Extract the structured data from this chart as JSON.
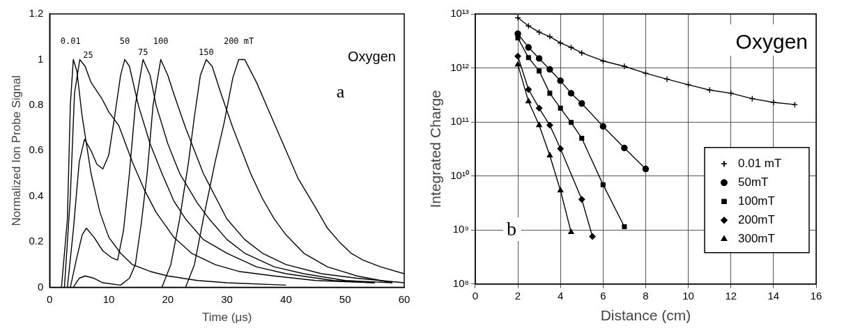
{
  "chart_data": [
    {
      "type": "line",
      "xlabel": "Time (μs)",
      "ylabel": "Normalized Ion Probe Signal",
      "annotations": [
        "Oxygen",
        "a"
      ],
      "xlim": [
        0,
        60
      ],
      "ylim": [
        0,
        1.2
      ],
      "xticks": [
        0,
        10,
        20,
        30,
        40,
        50,
        60
      ],
      "yticks": [
        0,
        0.2,
        0.4,
        0.6,
        0.8,
        1,
        1.2
      ],
      "grid": false,
      "legend": false,
      "marker": "none",
      "line_style": "solid",
      "series": [
        {
          "name": "0.01",
          "color": "#000000",
          "x": [
            2,
            3,
            3.5,
            4,
            4.6,
            5.5,
            7,
            8.5,
            10,
            12,
            14,
            17,
            20,
            25,
            30,
            40
          ],
          "values": [
            0,
            0.3,
            0.8,
            1,
            0.95,
            0.75,
            0.5,
            0.33,
            0.22,
            0.15,
            0.1,
            0.07,
            0.05,
            0.03,
            0.02,
            0.01
          ]
        },
        {
          "name": "25",
          "color": "#000000",
          "x": [
            2.5,
            3.5,
            4.2,
            5.1,
            6,
            7,
            8.8,
            10,
            11.7,
            14,
            16,
            18,
            21,
            24,
            28,
            32,
            38,
            45,
            55
          ],
          "values": [
            0,
            0.4,
            0.85,
            1,
            0.97,
            0.9,
            0.83,
            0.77,
            0.71,
            0.55,
            0.43,
            0.33,
            0.22,
            0.15,
            0.1,
            0.07,
            0.05,
            0.03,
            0.02
          ]
        },
        {
          "name": "50",
          "color": "#000000",
          "x": [
            3,
            4,
            5,
            5.9,
            7,
            8,
            9,
            10,
            11,
            12,
            12.7,
            13.5,
            15,
            17,
            19,
            21,
            23,
            26,
            30,
            35,
            40,
            48,
            55
          ],
          "values": [
            0,
            0.25,
            0.55,
            0.65,
            0.6,
            0.54,
            0.52,
            0.58,
            0.75,
            0.93,
            1,
            0.97,
            0.8,
            0.63,
            0.5,
            0.38,
            0.3,
            0.21,
            0.15,
            0.09,
            0.06,
            0.03,
            0.02
          ]
        },
        {
          "name": "75",
          "color": "#000000",
          "x": [
            3.5,
            4.5,
            5.5,
            6.2,
            7.5,
            9,
            10.5,
            11.5,
            12.5,
            13.5,
            14.5,
            15.8,
            17,
            18,
            20,
            22,
            25,
            27,
            30,
            33,
            38,
            43,
            50,
            58
          ],
          "values": [
            0,
            0.12,
            0.23,
            0.26,
            0.22,
            0.16,
            0.13,
            0.12,
            0.25,
            0.5,
            0.8,
            1,
            0.93,
            0.8,
            0.63,
            0.5,
            0.37,
            0.3,
            0.21,
            0.15,
            0.09,
            0.06,
            0.03,
            0.02
          ]
        },
        {
          "name": "100",
          "color": "#000000",
          "x": [
            4,
            5,
            6,
            7.5,
            9,
            12,
            13.5,
            14.5,
            15.5,
            16.5,
            17.5,
            18.8,
            20,
            21,
            23,
            26,
            30,
            33,
            36,
            40,
            46,
            52,
            60
          ],
          "values": [
            0,
            0.04,
            0.05,
            0.04,
            0.02,
            0.01,
            0.04,
            0.1,
            0.28,
            0.5,
            0.8,
            1,
            0.93,
            0.85,
            0.7,
            0.5,
            0.3,
            0.21,
            0.15,
            0.1,
            0.06,
            0.04,
            0.02
          ]
        },
        {
          "name": "150",
          "color": "#000000",
          "x": [
            19,
            20.5,
            22,
            23.5,
            24.5,
            25.5,
            26.5,
            27.5,
            29,
            31,
            34,
            36,
            38,
            40,
            43,
            47,
            52,
            58
          ],
          "values": [
            0,
            0.1,
            0.3,
            0.55,
            0.75,
            0.93,
            1,
            0.97,
            0.85,
            0.7,
            0.5,
            0.39,
            0.3,
            0.23,
            0.15,
            0.09,
            0.05,
            0.02
          ]
        },
        {
          "name": "200 mT",
          "color": "#000000",
          "x": [
            23,
            24.5,
            26,
            28,
            29.5,
            31,
            32,
            33,
            35,
            37,
            40,
            42,
            45,
            47,
            49,
            51,
            53,
            56,
            60
          ],
          "values": [
            0,
            0.1,
            0.3,
            0.55,
            0.72,
            0.92,
            1,
            1,
            0.9,
            0.78,
            0.6,
            0.48,
            0.35,
            0.26,
            0.2,
            0.15,
            0.12,
            0.09,
            0.06
          ]
        }
      ]
    },
    {
      "type": "line",
      "xlabel": "Distance (cm)",
      "ylabel": "Integrated Charge",
      "annotations": [
        "Oxygen",
        "b"
      ],
      "log": "y",
      "xlim": [
        0,
        16
      ],
      "ylim": [
        100000000.0,
        10000000000000.0
      ],
      "xticks": [
        0,
        2,
        4,
        6,
        8,
        10,
        12,
        14,
        16
      ],
      "yticks": [
        {
          "value": 100000000.0,
          "label": "10⁸"
        },
        {
          "value": 1000000000.0,
          "label": "10⁹"
        },
        {
          "value": 10000000000.0,
          "label": "10¹⁰"
        },
        {
          "value": 100000000000.0,
          "label": "10¹¹"
        },
        {
          "value": 1000000000000.0,
          "label": "10¹²"
        },
        {
          "value": 10000000000000.0,
          "label": "10¹³"
        }
      ],
      "grid": true,
      "legend": "bottom right",
      "line_style": "solid",
      "series": [
        {
          "name": "0.01 mT",
          "color": "#000000",
          "marker": "cross",
          "x": [
            2,
            2.5,
            3,
            3.5,
            4,
            4.5,
            5,
            6,
            7,
            8,
            9,
            10,
            11,
            12,
            13,
            14,
            15
          ],
          "values": [
            8500000000000.0,
            6000000000000.0,
            4600000000000.0,
            3800000000000.0,
            2900000000000.0,
            2400000000000.0,
            1900000000000.0,
            1350000000000.0,
            1070000000000.0,
            800000000000.0,
            620000000000.0,
            490000000000.0,
            390000000000.0,
            340000000000.0,
            270000000000.0,
            230000000000.0,
            210000000000.0
          ]
        },
        {
          "name": "50mT",
          "color": "#000000",
          "marker": "circle",
          "x": [
            2,
            2.5,
            3,
            3.5,
            4,
            4.5,
            5,
            6,
            7,
            8
          ],
          "values": [
            4300000000000.0,
            2400000000000.0,
            1500000000000.0,
            940000000000.0,
            580000000000.0,
            340000000000.0,
            220000000000.0,
            83000000000.0,
            33000000000.0,
            13500000000.0
          ]
        },
        {
          "name": "100mT",
          "color": "#000000",
          "marker": "square",
          "x": [
            2,
            2.5,
            3,
            3.5,
            4,
            4.5,
            5,
            6,
            7
          ],
          "values": [
            3600000000000.0,
            1550000000000.0,
            880000000000.0,
            340000000000.0,
            180000000000.0,
            98000000000.0,
            50000000000.0,
            6900000000.0,
            1150000000.0
          ]
        },
        {
          "name": "200mT",
          "color": "#000000",
          "marker": "diamond",
          "x": [
            2,
            2.5,
            3,
            3.5,
            4,
            5,
            5.5
          ],
          "values": [
            1650000000000.0,
            400000000000.0,
            180000000000.0,
            87000000000.0,
            32000000000.0,
            3700000000.0,
            760000000.0
          ]
        },
        {
          "name": "300mT",
          "color": "#000000",
          "marker": "triangle",
          "x": [
            2,
            2.5,
            3,
            3.5,
            4,
            4.5
          ],
          "values": [
            1150000000000.0,
            240000000000.0,
            87000000000.0,
            24000000000.0,
            5400000000.0,
            910000000.0
          ]
        }
      ]
    }
  ]
}
